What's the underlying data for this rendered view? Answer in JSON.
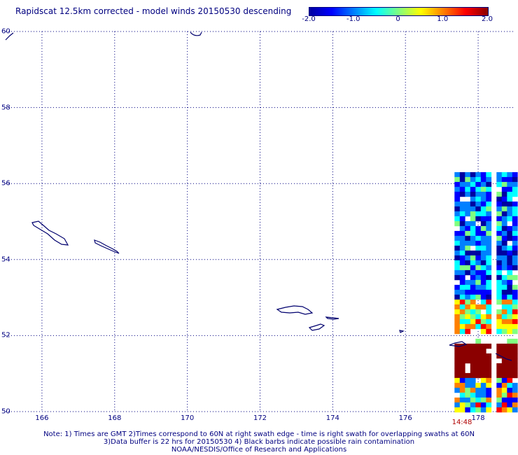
{
  "title": "Rapidscat 12.5km corrected - model winds 20150530 descending",
  "colorbar": {
    "ticks": [
      "-2.0",
      "-1.0",
      "0",
      "1.0",
      "2.0"
    ],
    "tick_values": [
      -2.0,
      -1.0,
      0,
      1.0,
      2.0
    ],
    "min": -2.0,
    "max": 2.0,
    "colors": [
      "#0000a0",
      "#0000ff",
      "#0080ff",
      "#00ffff",
      "#80ff80",
      "#ffff00",
      "#ff8000",
      "#ff0000",
      "#8b0000"
    ]
  },
  "map": {
    "lat_labels": [
      "60",
      "58",
      "56",
      "54",
      "52",
      "50"
    ],
    "lat_values": [
      60,
      58,
      56,
      54,
      52,
      50
    ],
    "lon_labels": [
      "166",
      "168",
      "170",
      "172",
      "174",
      "176",
      "178"
    ],
    "lon_values": [
      166,
      168,
      170,
      172,
      174,
      176,
      178
    ],
    "lon_range": [
      165,
      179
    ],
    "lat_range": [
      50,
      60
    ],
    "coastline_color": "#00006e",
    "grid_color": "#000080"
  },
  "swath": {
    "time_label": "14:48",
    "lon_range": [
      177.35,
      179.0
    ],
    "lat_range": [
      50.0,
      56.3
    ]
  },
  "notes": {
    "line1": "Note: 1) Times are GMT 2)Times correspond to 60N at right swath edge - time is right swath for overlapping swaths at 60N",
    "line2": "3)Data buffer is 22 hrs for 20150530 4) Black barbs indicate possible rain contamination",
    "line3": "NOAA/NESDIS/Office of Research and Applications"
  }
}
